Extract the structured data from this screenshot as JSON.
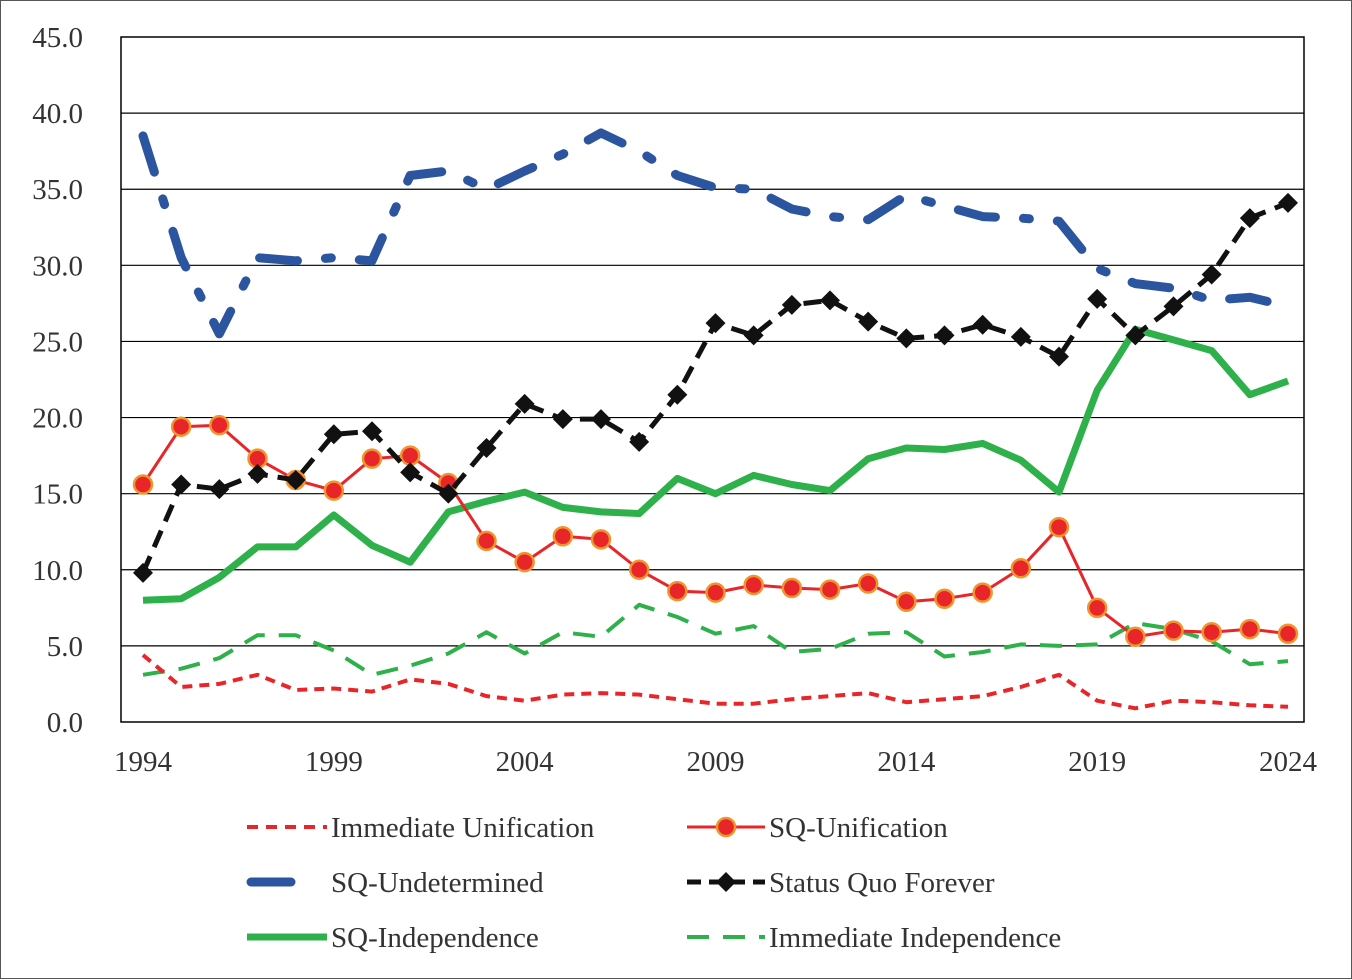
{
  "chart_data": {
    "type": "line",
    "title": "",
    "xlabel": "",
    "ylabel": "",
    "xlim": [
      1994,
      2024
    ],
    "ylim": [
      0,
      45
    ],
    "grid": true,
    "legend_position": "bottom",
    "x_ticks": [
      "1994",
      "1999",
      "2004",
      "2009",
      "2014",
      "2019",
      "2024"
    ],
    "x_tick_values": [
      1994,
      1999,
      2004,
      2009,
      2014,
      2019,
      2024
    ],
    "y_ticks": [
      "0.0",
      "5.0",
      "10.0",
      "15.0",
      "20.0",
      "25.0",
      "30.0",
      "35.0",
      "40.0",
      "45.0"
    ],
    "y_tick_values": [
      0,
      5,
      10,
      15,
      20,
      25,
      30,
      35,
      40,
      45
    ],
    "x": [
      1994,
      1995,
      1996,
      1997,
      1998,
      1999,
      2000,
      2001,
      2002,
      2003,
      2004,
      2005,
      2006,
      2007,
      2008,
      2009,
      2010,
      2011,
      2012,
      2013,
      2014,
      2015,
      2016,
      2017,
      2018,
      2019,
      2020,
      2021,
      2022,
      2023,
      2024
    ],
    "series": [
      {
        "name": "Immediate Unification",
        "color": "#e8262a",
        "style": "short-dash",
        "values": [
          4.4,
          2.3,
          2.5,
          3.1,
          2.1,
          2.2,
          2.0,
          2.8,
          2.5,
          1.7,
          1.4,
          1.8,
          1.9,
          1.8,
          1.5,
          1.2,
          1.2,
          1.5,
          1.7,
          1.9,
          1.3,
          1.5,
          1.7,
          2.3,
          3.1,
          1.4,
          0.9,
          1.4,
          1.3,
          1.1,
          1.0
        ]
      },
      {
        "name": "SQ-Unification",
        "color": "#e8262a",
        "style": "solid-circle",
        "values": [
          15.6,
          19.4,
          19.5,
          17.3,
          15.9,
          15.2,
          17.3,
          17.5,
          15.7,
          11.9,
          10.5,
          12.2,
          12.0,
          10.0,
          8.6,
          8.5,
          9.0,
          8.8,
          8.7,
          9.1,
          7.9,
          8.1,
          8.5,
          10.1,
          12.8,
          7.5,
          5.6,
          6.0,
          5.9,
          6.1,
          5.8
        ]
      },
      {
        "name": "SQ-Undetermined",
        "color": "#2c55a0",
        "style": "long-dash-dot",
        "values": [
          38.5,
          30.5,
          25.5,
          30.5,
          30.3,
          30.5,
          30.3,
          35.9,
          36.2,
          35.0,
          36.2,
          37.3,
          38.7,
          37.5,
          35.9,
          35.1,
          35.0,
          33.7,
          33.2,
          33.0,
          34.6,
          33.9,
          33.2,
          33.1,
          32.9,
          29.8,
          28.8,
          28.5,
          27.7,
          27.9,
          27.3
        ]
      },
      {
        "name": "Status Quo Forever",
        "color": "#111111",
        "style": "dash-diamond",
        "values": [
          9.8,
          15.6,
          15.3,
          16.3,
          15.9,
          18.9,
          19.1,
          16.4,
          15.0,
          18.0,
          20.9,
          19.9,
          19.9,
          18.4,
          21.5,
          26.2,
          25.4,
          27.4,
          27.7,
          26.3,
          25.2,
          25.4,
          26.1,
          25.3,
          24.0,
          27.8,
          25.4,
          27.3,
          29.4,
          33.1,
          34.1
        ]
      },
      {
        "name": "SQ-Independence",
        "color": "#2eb04a",
        "style": "thick-solid",
        "values": [
          8.0,
          8.1,
          9.5,
          11.5,
          11.5,
          13.6,
          11.6,
          10.5,
          13.8,
          14.5,
          15.1,
          14.1,
          13.8,
          13.7,
          16.0,
          15.0,
          16.2,
          15.6,
          15.2,
          17.3,
          18.0,
          17.9,
          18.3,
          17.2,
          15.1,
          21.8,
          25.8,
          25.1,
          24.4,
          21.5,
          22.4
        ]
      },
      {
        "name": "Immediate Independence",
        "color": "#2eb04a",
        "style": "medium-dash",
        "values": [
          3.1,
          3.5,
          4.2,
          5.7,
          5.7,
          4.7,
          3.1,
          3.7,
          4.5,
          5.9,
          4.5,
          5.9,
          5.6,
          7.7,
          6.9,
          5.8,
          6.3,
          4.6,
          4.8,
          5.8,
          5.9,
          4.3,
          4.6,
          5.1,
          5.0,
          5.1,
          6.5,
          6.1,
          5.3,
          3.8,
          4.0
        ]
      }
    ]
  }
}
